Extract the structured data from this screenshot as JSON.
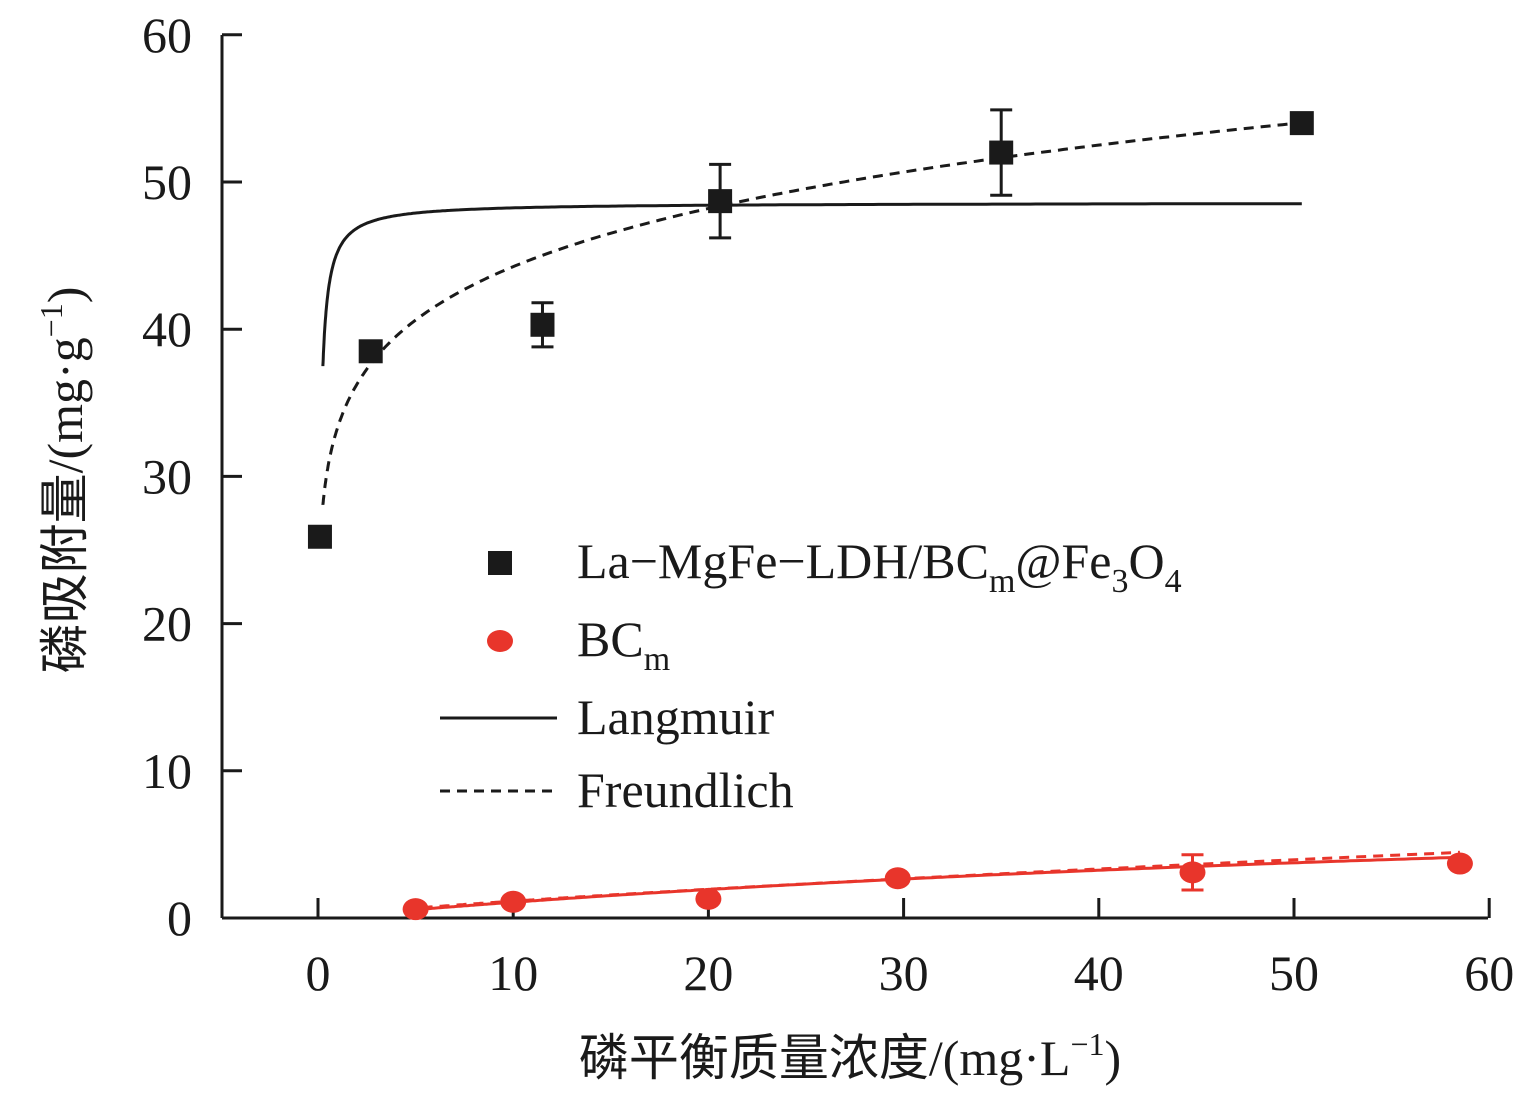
{
  "chart_data": {
    "type": "scatter",
    "xlabel": "磷平衡质量浓度/(mg·L⁻¹)",
    "ylabel": "磷吸附量/(mg·g⁻¹)",
    "xlim": [
      -5,
      60
    ],
    "ylim": [
      0,
      60
    ],
    "x_ticks": [
      0,
      10,
      20,
      30,
      40,
      50,
      60
    ],
    "y_ticks": [
      0,
      10,
      20,
      30,
      40,
      50,
      60
    ],
    "legend_position": "center",
    "grid": false,
    "series": [
      {
        "name": "La−MgFe−LDH/BCm@Fe3O4",
        "marker": "square",
        "color": "#1a1a1a",
        "x": [
          0.1,
          2.7,
          11.5,
          20.6,
          35.0,
          50.4
        ],
        "y": [
          25.9,
          38.5,
          40.3,
          48.7,
          52.0,
          54.0
        ],
        "error": [
          0,
          0,
          1.5,
          2.5,
          2.9,
          0
        ]
      },
      {
        "name": "BCm",
        "marker": "circle",
        "color": "#e8352b",
        "x": [
          5.0,
          10.0,
          20.0,
          29.7,
          44.8,
          58.5
        ],
        "y": [
          0.6,
          1.1,
          1.3,
          2.7,
          3.1,
          3.7
        ],
        "error": [
          0,
          0,
          0,
          0,
          1.2,
          0
        ]
      }
    ],
    "fits": [
      {
        "name": "Langmuir",
        "style": "solid",
        "applies_to": "La−MgFe−LDH/BCm@Fe3O4",
        "qm": 48.6,
        "K": 13.5,
        "x_range": [
          0.25,
          50.4
        ]
      },
      {
        "name": "Freundlich",
        "style": "dashed",
        "applies_to": "La−MgFe−LDH/BCm@Fe3O4",
        "Kf": 33.3,
        "n": 8.1,
        "x_range": [
          0.25,
          50.4
        ]
      },
      {
        "name": "Langmuir",
        "style": "solid",
        "applies_to": "BCm",
        "color": "#e8352b",
        "qm": 10.0,
        "K": 0.012,
        "x_range": [
          4.5,
          58.5
        ]
      },
      {
        "name": "Freundlich",
        "style": "dashed",
        "applies_to": "BCm",
        "color": "#e8352b",
        "Kf": 0.195,
        "n": 1.3,
        "x_range": [
          4.5,
          58.5
        ]
      }
    ]
  },
  "legend": {
    "items": [
      {
        "main": "La−MgFe−LDH/BC",
        "sub": "m",
        "after": "@Fe",
        "sub2": "3",
        "after2": "O",
        "sub3": "4"
      },
      {
        "main": "BC",
        "sub": "m"
      },
      {
        "main": "Langmuir"
      },
      {
        "main": "Freundlich"
      }
    ]
  },
  "labels": {
    "x_prefix": "磷平衡质量浓度/(mg·L",
    "x_sup": "−1",
    "x_suffix": ")",
    "y_prefix": "磷吸附量/(mg·g",
    "y_sup": "−1",
    "y_suffix": ")"
  }
}
